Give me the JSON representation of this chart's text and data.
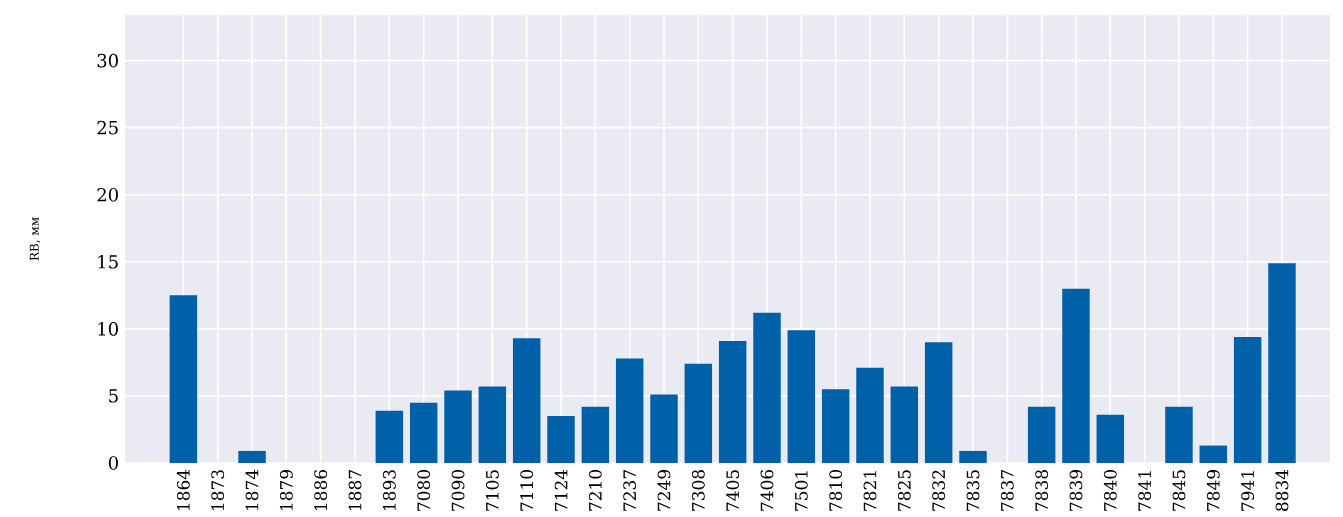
{
  "chart_data": {
    "type": "bar",
    "ylabel": "RB, мм",
    "categories": [
      "1864",
      "1873",
      "1874",
      "1879",
      "1886",
      "1887",
      "1893",
      "7080",
      "7090",
      "7105",
      "7110",
      "7124",
      "7210",
      "7237",
      "7249",
      "7308",
      "7405",
      "7406",
      "7501",
      "7810",
      "7821",
      "7825",
      "7832",
      "7835",
      "7837",
      "7838",
      "7839",
      "7840",
      "7841",
      "7845",
      "7849",
      "7941",
      "8834"
    ],
    "values": [
      12.5,
      0,
      0.9,
      0,
      0,
      0,
      3.9,
      4.5,
      5.4,
      5.7,
      9.3,
      3.5,
      4.2,
      7.8,
      5.1,
      7.4,
      9.1,
      11.2,
      9.9,
      5.5,
      7.1,
      5.7,
      9.0,
      0.9,
      0,
      4.2,
      13.0,
      3.6,
      0,
      4.2,
      1.3,
      9.4,
      14.9
    ],
    "color": "#0060a8",
    "ylim": [
      0,
      33.4
    ],
    "yticks": [
      0,
      5,
      10,
      15,
      20,
      25,
      30
    ],
    "grid": true
  }
}
